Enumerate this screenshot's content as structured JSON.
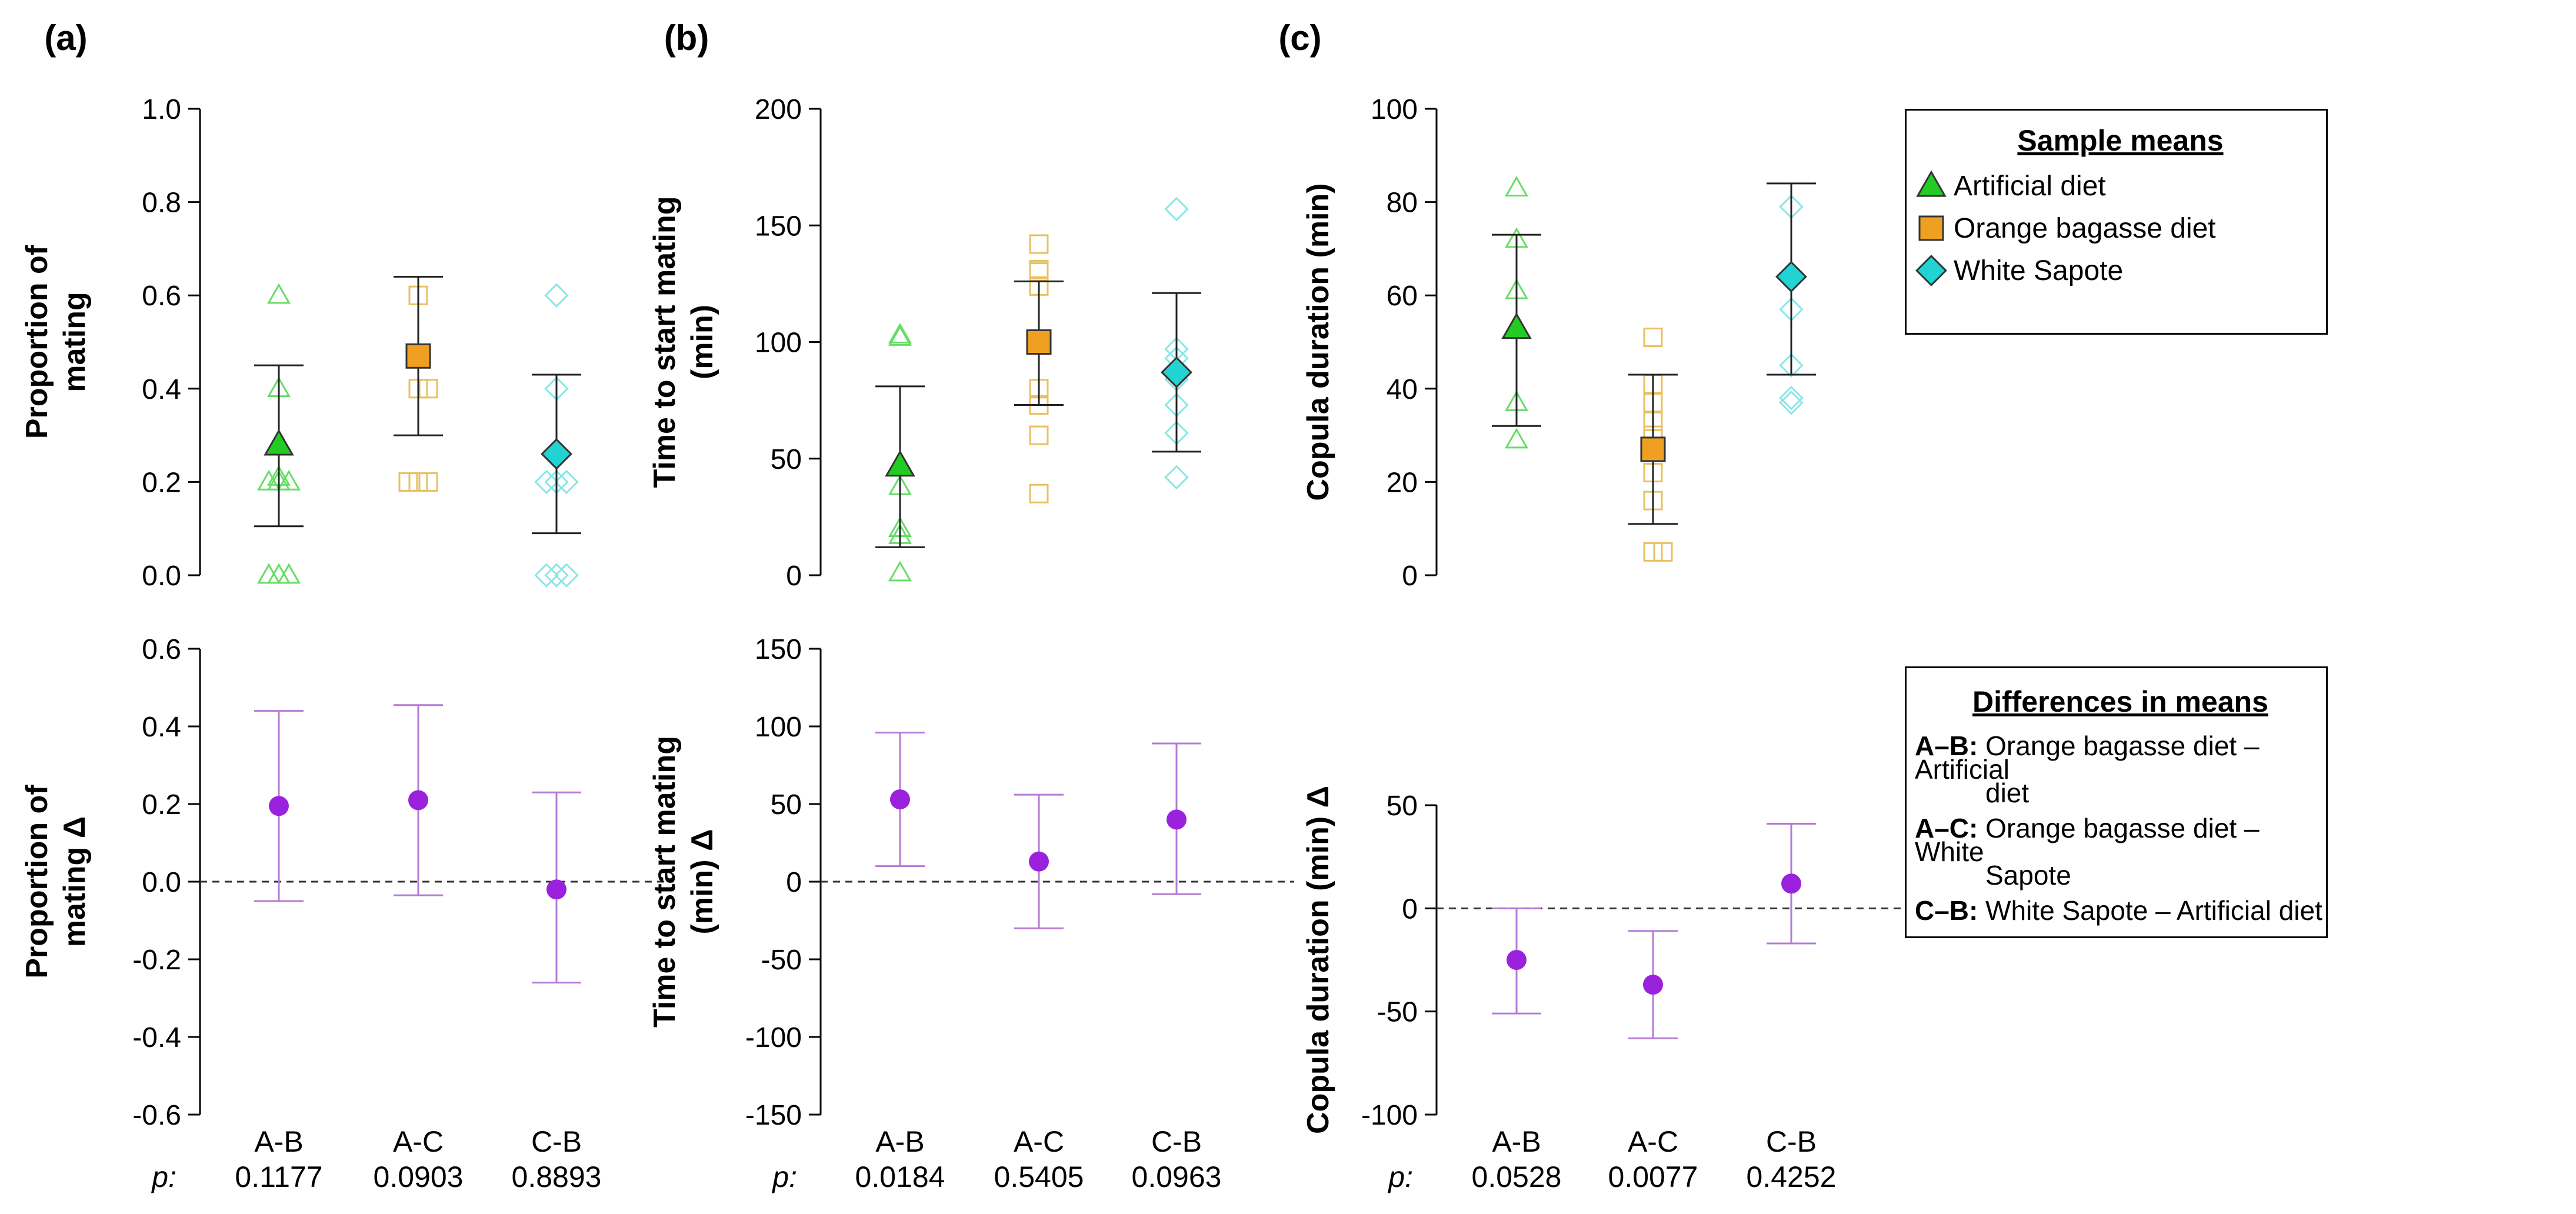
{
  "panels": [
    {
      "label": "(a)",
      "top_ylabel": [
        "Proportion of",
        "mating"
      ],
      "bottom_ylabel": [
        "Proportion of",
        "mating Δ"
      ],
      "p_values": [
        "0.1177",
        "0.0903",
        "0.8893"
      ]
    },
    {
      "label": "(b)",
      "top_ylabel": [
        "Time to start mating",
        "(min)"
      ],
      "bottom_ylabel": [
        "Time to start mating",
        "(min) Δ"
      ],
      "p_values": [
        "0.0184",
        "0.5405",
        "0.0963"
      ]
    },
    {
      "label": "(c)",
      "top_ylabel": [
        "Copula duration (min)"
      ],
      "bottom_ylabel": [
        "Copula duration (min) Δ"
      ],
      "p_values": [
        "0.0528",
        "0.0077",
        "0.4252"
      ]
    }
  ],
  "comparisons": [
    "A-B",
    "A-C",
    "C-B"
  ],
  "p_label": "p:",
  "legend_means": {
    "title": "Sample means",
    "items": [
      {
        "label": "Artificial diet",
        "color": "#22cc22",
        "marker": "triangle"
      },
      {
        "label": "Orange bagasse diet",
        "color": "#f0a020",
        "marker": "square"
      },
      {
        "label": "White Sapote",
        "color": "#22d3d3",
        "marker": "diamond"
      }
    ]
  },
  "legend_diffs": {
    "title": "Differences in means",
    "items": [
      {
        "key": "A–B:",
        "text": "Orange bagasse diet – Artificial",
        "text2": "diet"
      },
      {
        "key": "A–C:",
        "text": "Orange bagasse diet – White",
        "text2": "Sapote"
      },
      {
        "key": "C–B:",
        "text": "White Sapote – Artificial diet",
        "text2": ""
      }
    ]
  },
  "colors": {
    "diff": "#9a22dd",
    "diff_bar": "#b57ad6",
    "groups": [
      "#22cc22",
      "#f0a020",
      "#22d3d3"
    ],
    "groups_light": [
      "#66dd66",
      "#e8c060",
      "#88e6e6"
    ]
  },
  "chart_data": [
    {
      "type": "scatter",
      "title": "(a) Proportion of mating",
      "ylabel": "Proportion of mating",
      "ylim": [
        0,
        1
      ],
      "yticks": [
        "0.0",
        "0.2",
        "0.4",
        "0.6",
        "0.8",
        "1.0"
      ],
      "groups": [
        {
          "name": "Artificial diet",
          "mean": 0.28,
          "ci": [
            0.105,
            0.45
          ],
          "points": [
            0.6,
            0.4,
            0.2,
            0.2,
            0.21,
            0.2,
            0.0,
            0.0,
            0.0
          ]
        },
        {
          "name": "Orange bagasse diet",
          "mean": 0.47,
          "ci": [
            0.3,
            0.64
          ],
          "points": [
            0.6,
            0.4,
            0.4,
            0.2,
            0.2,
            0.2
          ]
        },
        {
          "name": "White Sapote",
          "mean": 0.26,
          "ci": [
            0.09,
            0.43
          ],
          "points": [
            0.6,
            0.4,
            0.2,
            0.2,
            0.2,
            0.0,
            0.0,
            0.0
          ]
        }
      ]
    },
    {
      "type": "scatter",
      "title": "(a) Proportion of mating Δ",
      "ylabel": "Proportion of mating Δ",
      "ylim": [
        -0.6,
        0.6
      ],
      "yticks": [
        "-0.6",
        "-0.4",
        "-0.2",
        "0.0",
        "0.2",
        "0.4",
        "0.6"
      ],
      "categories": [
        "A-B",
        "A-C",
        "C-B"
      ],
      "diffs": [
        {
          "mean": 0.195,
          "ci": [
            -0.05,
            0.44
          ],
          "p": "0.1177"
        },
        {
          "mean": 0.21,
          "ci": [
            -0.035,
            0.455
          ],
          "p": "0.0903"
        },
        {
          "mean": -0.02,
          "ci": [
            -0.26,
            0.23
          ],
          "p": "0.8893"
        }
      ]
    },
    {
      "type": "scatter",
      "title": "(b) Time to start mating (min)",
      "ylabel": "Time to start mating (min)",
      "ylim": [
        0,
        200
      ],
      "yticks": [
        "0",
        "50",
        "100",
        "150",
        "200"
      ],
      "groups": [
        {
          "name": "Artificial diet",
          "mean": 47,
          "ci": [
            12,
            81
          ],
          "points": [
            103,
            102,
            38,
            20,
            17,
            1
          ]
        },
        {
          "name": "Orange bagasse diet",
          "mean": 100,
          "ci": [
            73,
            126
          ],
          "points": [
            142,
            131,
            130,
            124,
            80,
            73,
            60,
            35
          ]
        },
        {
          "name": "White Sapote",
          "mean": 87,
          "ci": [
            53,
            121
          ],
          "points": [
            157,
            97,
            93,
            84,
            73,
            61,
            42
          ]
        }
      ]
    },
    {
      "type": "scatter",
      "title": "(b) Time to start mating (min) Δ",
      "ylabel": "Time to start mating (min) Δ",
      "ylim": [
        -150,
        150
      ],
      "yticks": [
        "-150",
        "-100",
        "-50",
        "0",
        "50",
        "100",
        "150"
      ],
      "categories": [
        "A-B",
        "A-C",
        "C-B"
      ],
      "diffs": [
        {
          "mean": 53,
          "ci": [
            10,
            96
          ],
          "p": "0.0184"
        },
        {
          "mean": 13,
          "ci": [
            -30,
            56
          ],
          "p": "0.5405"
        },
        {
          "mean": 40,
          "ci": [
            -8,
            89
          ],
          "p": "0.0963"
        }
      ]
    },
    {
      "type": "scatter",
      "title": "(c) Copula duration (min)",
      "ylabel": "Copula duration (min)",
      "ylim": [
        0,
        100
      ],
      "yticks": [
        "0",
        "20",
        "40",
        "60",
        "80",
        "100"
      ],
      "groups": [
        {
          "name": "Artificial diet",
          "mean": 53,
          "ci": [
            32,
            73
          ],
          "points": [
            83,
            72,
            61,
            37,
            29
          ]
        },
        {
          "name": "Orange bagasse diet",
          "mean": 27,
          "ci": [
            11,
            43
          ],
          "points": [
            51,
            41,
            37,
            33,
            30,
            27,
            22,
            16,
            5,
            5
          ]
        },
        {
          "name": "White Sapote",
          "mean": 64,
          "ci": [
            43,
            84
          ],
          "points": [
            79,
            57,
            45,
            38,
            37
          ]
        }
      ]
    },
    {
      "type": "scatter",
      "title": "(c) Copula duration (min) Δ",
      "ylabel": "Copula duration (min) Δ",
      "ylim": [
        -100,
        50
      ],
      "yticks": [
        "-100",
        "-50",
        "0",
        "50"
      ],
      "categories": [
        "A-B",
        "A-C",
        "C-B"
      ],
      "diffs": [
        {
          "mean": -25,
          "ci": [
            -51,
            0
          ],
          "p": "0.0528"
        },
        {
          "mean": -37,
          "ci": [
            -63,
            -11
          ],
          "p": "0.0077"
        },
        {
          "mean": 12,
          "ci": [
            -17,
            41
          ],
          "p": "0.4252"
        }
      ]
    }
  ]
}
